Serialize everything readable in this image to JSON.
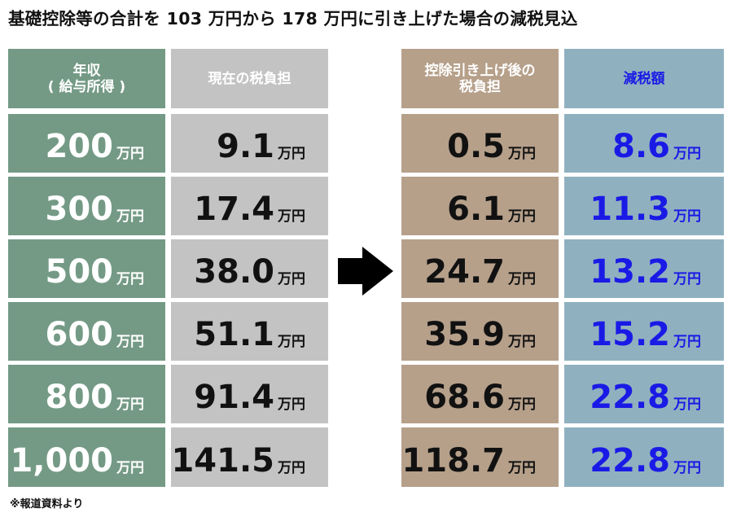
{
  "title": "基礎控除等の合計を 103 万円から 178 万円に引き上げた場合の減税見込",
  "headers": {
    "income_line1": "年収",
    "income_line2": "( 給与所得 )",
    "current": "現在の税負担",
    "after_line1": "控除引き上げ後の",
    "after_line2": "税負担",
    "reduction": "減税額"
  },
  "unit": "万円",
  "rows": [
    {
      "income": "200",
      "current": "9.1",
      "after": "0.5",
      "reduction": "8.6"
    },
    {
      "income": "300",
      "current": "17.4",
      "after": "6.1",
      "reduction": "11.3"
    },
    {
      "income": "500",
      "current": "38.0",
      "after": "24.7",
      "reduction": "13.2"
    },
    {
      "income": "600",
      "current": "51.1",
      "after": "35.9",
      "reduction": "15.2"
    },
    {
      "income": "800",
      "current": "91.4",
      "after": "68.6",
      "reduction": "22.8"
    },
    {
      "income": "1,000",
      "current": "141.5",
      "after": "118.7",
      "reduction": "22.8"
    }
  ],
  "note": "※報道資料より",
  "colors": {
    "income": "#749a85",
    "current": "#c3c3c3",
    "after": "#b6a08a",
    "reduction": "#8fb1bf",
    "reduction_text": "#1a1ae6"
  },
  "chart_data": {
    "type": "table",
    "title": "基礎控除等の合計を 103 万円から 178 万円に引き上げた場合の減税見込",
    "columns": [
      "年収 ( 給与所得 )",
      "現在の税負担",
      "控除引き上げ後の税負担",
      "減税額"
    ],
    "unit": "万円",
    "categories": [
      "200",
      "300",
      "500",
      "600",
      "800",
      "1,000"
    ],
    "series": [
      {
        "name": "現在の税負担",
        "values": [
          9.1,
          17.4,
          38.0,
          51.1,
          91.4,
          141.5
        ]
      },
      {
        "name": "控除引き上げ後の税負担",
        "values": [
          0.5,
          6.1,
          24.7,
          35.9,
          68.6,
          118.7
        ]
      },
      {
        "name": "減税額",
        "values": [
          8.6,
          11.3,
          13.2,
          15.2,
          22.8,
          22.8
        ]
      }
    ]
  }
}
